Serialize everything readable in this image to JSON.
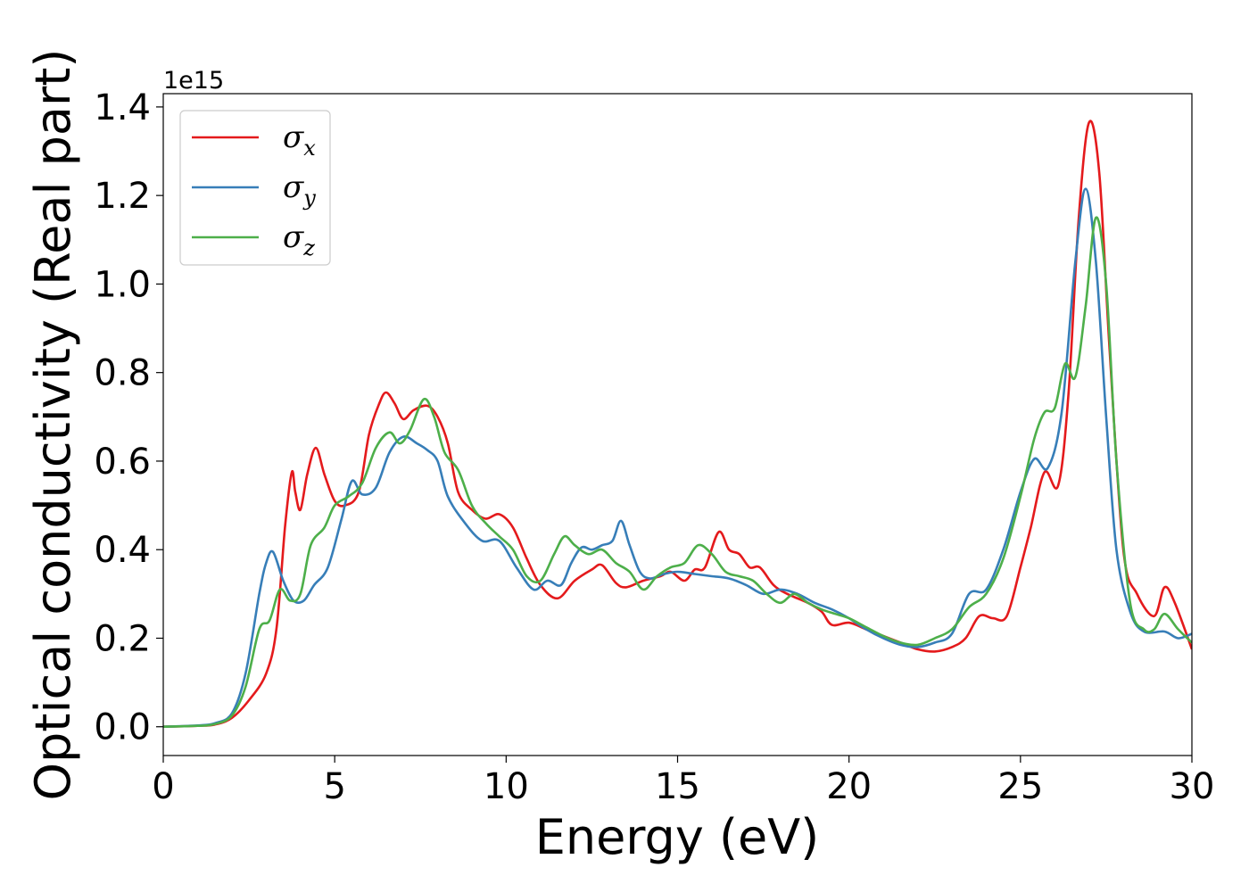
{
  "chart_data": {
    "type": "line",
    "xlabel": "Energy (eV)",
    "ylabel": "Optical conductivity (Real part)",
    "y_offset_label": "1e15",
    "xlim": [
      0,
      30
    ],
    "ylim": [
      -0.065,
      1.43
    ],
    "x_ticks": [
      {
        "value": 0,
        "label": "0"
      },
      {
        "value": 5,
        "label": "5"
      },
      {
        "value": 10,
        "label": "10"
      },
      {
        "value": 15,
        "label": "15"
      },
      {
        "value": 20,
        "label": "20"
      },
      {
        "value": 25,
        "label": "25"
      },
      {
        "value": 30,
        "label": "30"
      }
    ],
    "y_ticks": [
      {
        "value": 0.0,
        "label": "0.0"
      },
      {
        "value": 0.2,
        "label": "0.2"
      },
      {
        "value": 0.4,
        "label": "0.4"
      },
      {
        "value": 0.6,
        "label": "0.6"
      },
      {
        "value": 0.8,
        "label": "0.8"
      },
      {
        "value": 1.0,
        "label": "1.0"
      },
      {
        "value": 1.2,
        "label": "1.2"
      },
      {
        "value": 1.4,
        "label": "1.4"
      }
    ],
    "grid": false,
    "legend_position": "top-left",
    "series": [
      {
        "name": "σx",
        "base": "σ",
        "sub": "x",
        "color": "#e41a1c",
        "points": [
          [
            0,
            0
          ],
          [
            1,
            0.002
          ],
          [
            1.5,
            0.005
          ],
          [
            2,
            0.02
          ],
          [
            2.5,
            0.06
          ],
          [
            3,
            0.12
          ],
          [
            3.3,
            0.22
          ],
          [
            3.55,
            0.45
          ],
          [
            3.75,
            0.575
          ],
          [
            3.85,
            0.53
          ],
          [
            4.0,
            0.49
          ],
          [
            4.2,
            0.57
          ],
          [
            4.45,
            0.63
          ],
          [
            4.7,
            0.57
          ],
          [
            5.0,
            0.51
          ],
          [
            5.3,
            0.5
          ],
          [
            5.7,
            0.53
          ],
          [
            6.0,
            0.66
          ],
          [
            6.3,
            0.73
          ],
          [
            6.5,
            0.755
          ],
          [
            6.75,
            0.73
          ],
          [
            7.0,
            0.695
          ],
          [
            7.3,
            0.715
          ],
          [
            7.7,
            0.725
          ],
          [
            8.0,
            0.7
          ],
          [
            8.3,
            0.64
          ],
          [
            8.6,
            0.53
          ],
          [
            9.0,
            0.49
          ],
          [
            9.4,
            0.47
          ],
          [
            9.8,
            0.48
          ],
          [
            10.2,
            0.45
          ],
          [
            10.6,
            0.38
          ],
          [
            11.0,
            0.32
          ],
          [
            11.5,
            0.29
          ],
          [
            12.0,
            0.33
          ],
          [
            12.5,
            0.355
          ],
          [
            12.8,
            0.365
          ],
          [
            13.2,
            0.325
          ],
          [
            13.5,
            0.315
          ],
          [
            14.0,
            0.33
          ],
          [
            14.5,
            0.34
          ],
          [
            14.8,
            0.35
          ],
          [
            15.2,
            0.33
          ],
          [
            15.5,
            0.355
          ],
          [
            15.8,
            0.36
          ],
          [
            16.2,
            0.44
          ],
          [
            16.5,
            0.4
          ],
          [
            16.8,
            0.39
          ],
          [
            17.1,
            0.36
          ],
          [
            17.4,
            0.36
          ],
          [
            17.8,
            0.32
          ],
          [
            18.2,
            0.3
          ],
          [
            18.8,
            0.28
          ],
          [
            19.2,
            0.26
          ],
          [
            19.5,
            0.23
          ],
          [
            20.0,
            0.235
          ],
          [
            20.5,
            0.22
          ],
          [
            21.0,
            0.205
          ],
          [
            21.5,
            0.19
          ],
          [
            22.0,
            0.175
          ],
          [
            22.5,
            0.17
          ],
          [
            23.0,
            0.18
          ],
          [
            23.4,
            0.2
          ],
          [
            23.8,
            0.25
          ],
          [
            24.2,
            0.245
          ],
          [
            24.6,
            0.25
          ],
          [
            25.0,
            0.36
          ],
          [
            25.3,
            0.45
          ],
          [
            25.7,
            0.575
          ],
          [
            26.1,
            0.545
          ],
          [
            26.4,
            0.75
          ],
          [
            26.7,
            1.15
          ],
          [
            27.0,
            1.365
          ],
          [
            27.3,
            1.25
          ],
          [
            27.6,
            0.85
          ],
          [
            28.0,
            0.4
          ],
          [
            28.4,
            0.3
          ],
          [
            28.9,
            0.25
          ],
          [
            29.2,
            0.315
          ],
          [
            29.5,
            0.28
          ],
          [
            30.0,
            0.175
          ]
        ]
      },
      {
        "name": "σy",
        "base": "σ",
        "sub": "y",
        "color": "#377eb8",
        "points": [
          [
            0,
            0
          ],
          [
            1,
            0.003
          ],
          [
            1.5,
            0.008
          ],
          [
            2,
            0.03
          ],
          [
            2.4,
            0.12
          ],
          [
            2.8,
            0.3
          ],
          [
            3.0,
            0.37
          ],
          [
            3.2,
            0.395
          ],
          [
            3.5,
            0.33
          ],
          [
            3.8,
            0.285
          ],
          [
            4.1,
            0.285
          ],
          [
            4.4,
            0.32
          ],
          [
            4.8,
            0.36
          ],
          [
            5.2,
            0.47
          ],
          [
            5.5,
            0.555
          ],
          [
            5.8,
            0.525
          ],
          [
            6.2,
            0.54
          ],
          [
            6.6,
            0.62
          ],
          [
            7.0,
            0.655
          ],
          [
            7.4,
            0.64
          ],
          [
            7.7,
            0.625
          ],
          [
            8.0,
            0.6
          ],
          [
            8.3,
            0.52
          ],
          [
            8.8,
            0.46
          ],
          [
            9.3,
            0.42
          ],
          [
            9.8,
            0.42
          ],
          [
            10.3,
            0.36
          ],
          [
            10.8,
            0.31
          ],
          [
            11.2,
            0.33
          ],
          [
            11.6,
            0.32
          ],
          [
            11.9,
            0.37
          ],
          [
            12.2,
            0.405
          ],
          [
            12.5,
            0.4
          ],
          [
            12.8,
            0.41
          ],
          [
            13.1,
            0.42
          ],
          [
            13.35,
            0.465
          ],
          [
            13.6,
            0.41
          ],
          [
            13.9,
            0.35
          ],
          [
            14.2,
            0.335
          ],
          [
            14.6,
            0.345
          ],
          [
            15.0,
            0.35
          ],
          [
            15.5,
            0.345
          ],
          [
            16.0,
            0.34
          ],
          [
            16.5,
            0.335
          ],
          [
            17.0,
            0.32
          ],
          [
            17.5,
            0.3
          ],
          [
            18.0,
            0.31
          ],
          [
            18.5,
            0.3
          ],
          [
            19.0,
            0.28
          ],
          [
            19.5,
            0.265
          ],
          [
            20.0,
            0.245
          ],
          [
            20.5,
            0.22
          ],
          [
            21.0,
            0.2
          ],
          [
            21.5,
            0.185
          ],
          [
            22.0,
            0.18
          ],
          [
            22.5,
            0.19
          ],
          [
            23.0,
            0.21
          ],
          [
            23.5,
            0.3
          ],
          [
            24.0,
            0.31
          ],
          [
            24.5,
            0.4
          ],
          [
            25.0,
            0.53
          ],
          [
            25.4,
            0.605
          ],
          [
            25.8,
            0.585
          ],
          [
            26.2,
            0.71
          ],
          [
            26.6,
            1.05
          ],
          [
            26.9,
            1.215
          ],
          [
            27.2,
            1.05
          ],
          [
            27.5,
            0.7
          ],
          [
            27.8,
            0.4
          ],
          [
            28.2,
            0.26
          ],
          [
            28.6,
            0.215
          ],
          [
            29.2,
            0.215
          ],
          [
            29.6,
            0.2
          ],
          [
            30.0,
            0.21
          ]
        ]
      },
      {
        "name": "σz",
        "base": "σ",
        "sub": "z",
        "color": "#4daf4a",
        "points": [
          [
            0,
            0
          ],
          [
            1,
            0.002
          ],
          [
            1.5,
            0.006
          ],
          [
            2,
            0.025
          ],
          [
            2.4,
            0.09
          ],
          [
            2.8,
            0.22
          ],
          [
            3.1,
            0.24
          ],
          [
            3.4,
            0.31
          ],
          [
            3.7,
            0.285
          ],
          [
            4.0,
            0.3
          ],
          [
            4.3,
            0.41
          ],
          [
            4.7,
            0.45
          ],
          [
            5.0,
            0.5
          ],
          [
            5.4,
            0.52
          ],
          [
            5.8,
            0.55
          ],
          [
            6.2,
            0.63
          ],
          [
            6.6,
            0.665
          ],
          [
            6.9,
            0.64
          ],
          [
            7.2,
            0.67
          ],
          [
            7.6,
            0.74
          ],
          [
            7.9,
            0.7
          ],
          [
            8.2,
            0.62
          ],
          [
            8.6,
            0.58
          ],
          [
            9.0,
            0.5
          ],
          [
            9.4,
            0.46
          ],
          [
            9.8,
            0.43
          ],
          [
            10.2,
            0.4
          ],
          [
            10.6,
            0.34
          ],
          [
            11.0,
            0.33
          ],
          [
            11.4,
            0.39
          ],
          [
            11.7,
            0.43
          ],
          [
            12.0,
            0.41
          ],
          [
            12.4,
            0.39
          ],
          [
            12.8,
            0.4
          ],
          [
            13.2,
            0.37
          ],
          [
            13.6,
            0.35
          ],
          [
            14.0,
            0.31
          ],
          [
            14.4,
            0.34
          ],
          [
            14.8,
            0.36
          ],
          [
            15.2,
            0.37
          ],
          [
            15.6,
            0.41
          ],
          [
            16.0,
            0.39
          ],
          [
            16.4,
            0.35
          ],
          [
            16.8,
            0.34
          ],
          [
            17.2,
            0.33
          ],
          [
            17.6,
            0.3
          ],
          [
            18.0,
            0.28
          ],
          [
            18.4,
            0.3
          ],
          [
            18.8,
            0.28
          ],
          [
            19.2,
            0.265
          ],
          [
            19.6,
            0.255
          ],
          [
            20.0,
            0.245
          ],
          [
            20.5,
            0.225
          ],
          [
            21.0,
            0.205
          ],
          [
            21.5,
            0.19
          ],
          [
            22.0,
            0.185
          ],
          [
            22.5,
            0.2
          ],
          [
            23.0,
            0.22
          ],
          [
            23.5,
            0.27
          ],
          [
            24.0,
            0.3
          ],
          [
            24.5,
            0.38
          ],
          [
            25.0,
            0.52
          ],
          [
            25.4,
            0.65
          ],
          [
            25.7,
            0.71
          ],
          [
            26.0,
            0.72
          ],
          [
            26.3,
            0.82
          ],
          [
            26.6,
            0.79
          ],
          [
            26.9,
            0.95
          ],
          [
            27.2,
            1.15
          ],
          [
            27.5,
            1.0
          ],
          [
            27.8,
            0.6
          ],
          [
            28.2,
            0.28
          ],
          [
            28.6,
            0.22
          ],
          [
            28.9,
            0.22
          ],
          [
            29.2,
            0.255
          ],
          [
            29.6,
            0.22
          ],
          [
            30.0,
            0.19
          ]
        ]
      }
    ]
  }
}
